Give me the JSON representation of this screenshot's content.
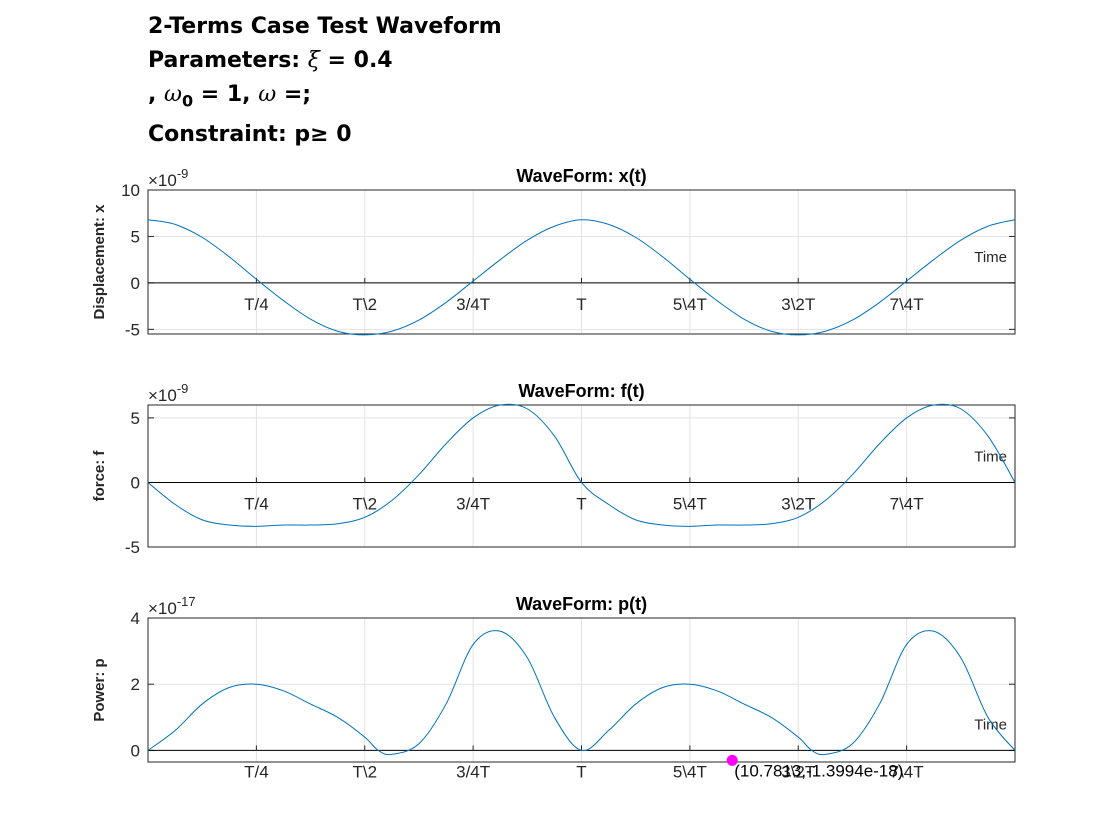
{
  "figure_title": {
    "line1": "2-Terms Case Test Waveform",
    "line2_prefix": "Parameters: ",
    "xi_symbol": "ξ",
    "line2_suffix": " = 0.4",
    "line3_prefix": ", ",
    "omega_symbol": "ω",
    "omega_sub": "0",
    "line3_mid": " = 1, ",
    "line3_suffix": " =;",
    "line4": "Constraint: p≥ 0"
  },
  "colors": {
    "line": "#0072BD",
    "axis": "#262626",
    "grid": "#e3e3e3",
    "marker": "#ff00ff"
  },
  "chart_data": [
    {
      "type": "line",
      "title": "WaveForm: x(t)",
      "ylabel": "Displacement: x",
      "xlabel": "Time",
      "exponent_label": "×10",
      "exponent_power": "-9",
      "xlim": [
        0,
        16
      ],
      "ylim": [
        -5.5,
        10
      ],
      "yticks": [
        -5,
        0,
        5,
        10
      ],
      "ytick_labels": [
        "-5",
        "0",
        "5",
        "10"
      ],
      "xticks": [
        2,
        4,
        6,
        8,
        10,
        12,
        14
      ],
      "xtick_labels": [
        "T/4",
        "T\\2",
        "3/4T",
        "T",
        "5\\4T",
        "3\\2T",
        "7\\4T"
      ],
      "grid": true,
      "series": [
        {
          "x": [
            0,
            0.5,
            1,
            1.5,
            2,
            2.5,
            3,
            3.5,
            4,
            4.5,
            5,
            5.5,
            6,
            6.5,
            7,
            7.5,
            8,
            8.5,
            9,
            9.5,
            10,
            10.5,
            11,
            11.5,
            12,
            12.5,
            13,
            13.5,
            14,
            14.5,
            15,
            15.5,
            16
          ],
          "y": [
            6.8,
            6.3,
            4.9,
            2.8,
            0.4,
            -1.9,
            -3.9,
            -5.2,
            -5.6,
            -5.2,
            -4.0,
            -2.1,
            0.2,
            2.5,
            4.6,
            6.1,
            6.8,
            6.3,
            4.9,
            2.8,
            0.4,
            -1.9,
            -3.9,
            -5.2,
            -5.6,
            -5.2,
            -4.0,
            -2.1,
            0.2,
            2.5,
            4.6,
            6.1,
            6.8
          ]
        }
      ]
    },
    {
      "type": "line",
      "title": "WaveForm: f(t)",
      "ylabel": "force: f",
      "xlabel": "Time",
      "exponent_label": "×10",
      "exponent_power": "-9",
      "xlim": [
        0,
        16
      ],
      "ylim": [
        -5,
        6
      ],
      "yticks": [
        -5,
        0,
        5
      ],
      "ytick_labels": [
        "-5",
        "0",
        "5"
      ],
      "xticks": [
        2,
        4,
        6,
        8,
        10,
        12,
        14
      ],
      "xtick_labels": [
        "T/4",
        "T\\2",
        "3/4T",
        "T",
        "5\\4T",
        "3\\2T",
        "7\\4T"
      ],
      "grid": true,
      "series": [
        {
          "x": [
            0,
            0.5,
            1,
            1.5,
            2,
            2.5,
            3,
            3.5,
            4,
            4.5,
            5,
            5.5,
            6,
            6.5,
            7,
            7.5,
            8,
            8.5,
            9,
            9.5,
            10,
            10.5,
            11,
            11.5,
            12,
            12.5,
            13,
            13.5,
            14,
            14.5,
            15,
            15.5,
            16
          ],
          "y": [
            0,
            -1.7,
            -2.9,
            -3.3,
            -3.4,
            -3.3,
            -3.3,
            -3.2,
            -2.7,
            -1.4,
            0.6,
            3.0,
            5.0,
            6.0,
            5.7,
            3.6,
            0,
            -1.7,
            -2.9,
            -3.3,
            -3.4,
            -3.3,
            -3.3,
            -3.2,
            -2.7,
            -1.4,
            0.6,
            3.0,
            5.0,
            6.0,
            5.7,
            3.6,
            0
          ]
        }
      ]
    },
    {
      "type": "line",
      "title": "WaveForm: p(t)",
      "ylabel": "Power: p",
      "xlabel": "Time",
      "exponent_label": "×10",
      "exponent_power": "-17",
      "xlim": [
        0,
        16
      ],
      "ylim": [
        -0.35,
        4
      ],
      "yticks": [
        0,
        2,
        4
      ],
      "ytick_labels": [
        "0",
        "2",
        "4"
      ],
      "xticks": [
        2,
        4,
        6,
        8,
        10,
        12,
        14
      ],
      "xtick_labels": [
        "T/4",
        "T\\2",
        "3/4T",
        "T",
        "5\\4T",
        "3\\2T",
        "7\\4T"
      ],
      "grid": true,
      "series": [
        {
          "x": [
            0,
            0.5,
            1,
            1.5,
            2,
            2.5,
            3,
            3.5,
            4,
            4.25,
            4.5,
            5,
            5.5,
            6,
            6.5,
            7,
            7.5,
            8,
            8.5,
            9,
            9.5,
            10,
            10.5,
            11,
            11.5,
            12,
            12.25,
            12.5,
            13,
            13.5,
            14,
            14.5,
            15,
            15.5,
            16
          ],
          "y": [
            0,
            0.6,
            1.4,
            1.9,
            2.0,
            1.8,
            1.4,
            1.0,
            0.4,
            0,
            -0.12,
            0.2,
            1.4,
            3.2,
            3.6,
            2.8,
            1.0,
            0,
            0.6,
            1.4,
            1.9,
            2.0,
            1.8,
            1.4,
            1.0,
            0.4,
            0,
            -0.12,
            0.2,
            1.4,
            3.2,
            3.6,
            2.8,
            1.0,
            0
          ]
        }
      ],
      "datatip": {
        "x": 10.7813,
        "y": -0.3,
        "label": "(10.7813,-1.3994e-18)"
      }
    }
  ]
}
